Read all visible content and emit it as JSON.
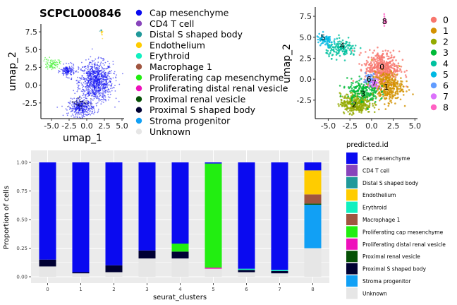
{
  "legend_colors": {
    "Cap mesenchyme": "#0a0af0",
    "CD4 T cell": "#8844bb",
    "Distal S shaped body": "#20999a",
    "Endothelium": "#ffcc00",
    "Erythroid": "#11f0c0",
    "Macrophage 1": "#a05540",
    "Proliferating cap mesenchyme": "#22ee11",
    "Proliferating distal renal vesicle": "#ee11bb",
    "Proximal renal vesicle": "#055005",
    "Proximal S shaped body": "#000033",
    "Stroma progenitor": "#11a0f5",
    "Unknown": "#e6e6e6"
  },
  "cluster_colors": [
    "#f8766d",
    "#d39200",
    "#93aa00",
    "#00ba38",
    "#00c19f",
    "#00b9e3",
    "#619cff",
    "#db72fb",
    "#ff61c3"
  ],
  "chart_data": [
    {
      "type": "scatter",
      "title": "SCPCL000846",
      "xlabel": "umap_1",
      "ylabel": "umap_2",
      "xticks": [
        "-5.0",
        "-2.5",
        "0.0",
        "2.5",
        "5.0"
      ],
      "yticks": [
        "-2.5",
        "0.0",
        "2.5",
        "5.0",
        "7.5"
      ],
      "xlim": [
        -6.5,
        5.3
      ],
      "ylim": [
        -4.7,
        8.6
      ],
      "legend_title": "",
      "legend": [
        "Cap mesenchyme",
        "CD4 T cell",
        "Distal S shaped body",
        "Endothelium",
        "Erythroid",
        "Macrophage 1",
        "Proliferating cap mesenchyme",
        "Proliferating distal renal vesicle",
        "Proximal renal vesicle",
        "Proximal S shaped body",
        "Stroma progenitor",
        "Unknown"
      ],
      "legend_display": [
        "Cap mesenchyme",
        "CD4 T cell",
        "Distal S shaped body",
        "Endothelium",
        "Erythroid",
        "Macrophage 1",
        "Proliferating cap mesenchyme",
        "Proliferating distal renal vesicle",
        "Proximal renal vesicle",
        "Proximal S shaped body",
        "Stroma progenitor",
        "Unknown"
      ]
    },
    {
      "type": "scatter",
      "xlabel": "",
      "ylabel": "umap_2",
      "xticks": [
        "-5.0",
        "-2.5",
        "0.0",
        "2.5",
        "5.0"
      ],
      "yticks": [
        "-2.5",
        "0.0",
        "2.5",
        "5.0",
        "7.5"
      ],
      "xlim": [
        -6.5,
        5.3
      ],
      "ylim": [
        -4.7,
        8.6
      ],
      "legend": [
        "0",
        "1",
        "2",
        "3",
        "4",
        "5",
        "6",
        "7",
        "8"
      ],
      "cluster_labels": [
        {
          "label": "0",
          "x": 1.2,
          "y": 1.5
        },
        {
          "label": "1",
          "x": 1.7,
          "y": -0.9
        },
        {
          "label": "2",
          "x": -2.0,
          "y": -3.0
        },
        {
          "label": "3",
          "x": -1.0,
          "y": -1.7
        },
        {
          "label": "4",
          "x": -3.4,
          "y": 4.0
        },
        {
          "label": "5",
          "x": -5.6,
          "y": 5.0
        },
        {
          "label": "6",
          "x": -0.3,
          "y": 0.0
        },
        {
          "label": "7",
          "x": 0.3,
          "y": -0.4
        },
        {
          "label": "8",
          "x": 1.5,
          "y": 6.9
        }
      ]
    },
    {
      "type": "bar",
      "stacked": true,
      "xlabel": "seurat_clusters",
      "ylabel": "Proportion of cells",
      "legend_title": "predicted.id",
      "categories": [
        "0",
        "1",
        "2",
        "3",
        "4",
        "5",
        "6",
        "7",
        "8"
      ],
      "yticks": [
        "0.00",
        "0.25",
        "0.50",
        "0.75",
        "1.00"
      ],
      "ylim": [
        0,
        1
      ],
      "legend": [
        "Cap mesenchyme",
        "CD4 T cell",
        "Distal S shaped body",
        "Endothelium",
        "Erythroid",
        "Macrophage 1",
        "Proliferating cap mesenchyme",
        "Proliferating distal renal vesicle",
        "Proximal renal vesicle",
        "Proximal S shaped body",
        "Stroma progenitor",
        "Unknown"
      ],
      "legend_display": [
        "Cap mesenchyme",
        "CD4 T cell",
        "Distal S shaped body",
        "Endothelium",
        "Erythroid",
        "Macrophage 1",
        "Proliferating cap mesenchyme",
        "Proliferating distal renal vesicle",
        "Proximal renal vesicle",
        "Proximal S shaped body",
        "Stroma progenitor",
        "Unknown"
      ],
      "series": [
        {
          "name": "Unknown",
          "values": [
            0.09,
            0.03,
            0.04,
            0.16,
            0.16,
            0.07,
            0.04,
            0.03,
            0.25
          ]
        },
        {
          "name": "Stroma progenitor",
          "values": [
            0,
            0,
            0,
            0,
            0,
            0,
            0,
            0,
            0.38
          ]
        },
        {
          "name": "Proximal S shaped body",
          "values": [
            0.06,
            0.01,
            0.06,
            0.07,
            0.06,
            0,
            0.02,
            0.02,
            0
          ]
        },
        {
          "name": "Proximal renal vesicle",
          "values": [
            0,
            0,
            0,
            0,
            0,
            0,
            0,
            0,
            0.01
          ]
        },
        {
          "name": "Proliferating distal renal vesicle",
          "values": [
            0,
            0,
            0,
            0,
            0,
            0.01,
            0,
            0,
            0
          ]
        },
        {
          "name": "Proliferating cap mesenchyme",
          "values": [
            0,
            0,
            0,
            0,
            0.07,
            0.91,
            0,
            0,
            0
          ]
        },
        {
          "name": "Macrophage 1",
          "values": [
            0,
            0,
            0,
            0,
            0,
            0,
            0,
            0,
            0.08
          ]
        },
        {
          "name": "Erythroid",
          "values": [
            0,
            0,
            0,
            0,
            0,
            0,
            0.01,
            0.01,
            0
          ]
        },
        {
          "name": "Endothelium",
          "values": [
            0,
            0,
            0,
            0,
            0,
            0,
            0,
            0,
            0.21
          ]
        },
        {
          "name": "Distal S shaped body",
          "values": [
            0,
            0,
            0,
            0,
            0,
            0,
            0,
            0,
            0
          ]
        },
        {
          "name": "CD4 T cell",
          "values": [
            0,
            0,
            0,
            0,
            0,
            0,
            0,
            0,
            0
          ]
        },
        {
          "name": "Cap mesenchyme",
          "values": [
            0.85,
            0.96,
            0.9,
            0.77,
            0.71,
            0.01,
            0.93,
            0.94,
            0.07
          ]
        }
      ]
    }
  ]
}
